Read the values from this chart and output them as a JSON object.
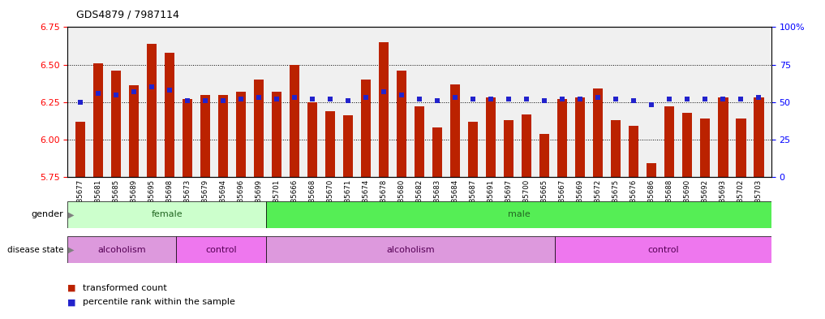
{
  "title": "GDS4879 / 7987114",
  "samples": [
    "GSM1085677",
    "GSM1085681",
    "GSM1085685",
    "GSM1085689",
    "GSM1085695",
    "GSM1085698",
    "GSM1085673",
    "GSM1085679",
    "GSM1085694",
    "GSM1085696",
    "GSM1085699",
    "GSM1085701",
    "GSM1085666",
    "GSM1085668",
    "GSM1085670",
    "GSM1085671",
    "GSM1085674",
    "GSM1085678",
    "GSM1085680",
    "GSM1085682",
    "GSM1085683",
    "GSM1085684",
    "GSM1085687",
    "GSM1085691",
    "GSM1085697",
    "GSM1085700",
    "GSM1085665",
    "GSM1085667",
    "GSM1085669",
    "GSM1085672",
    "GSM1085675",
    "GSM1085676",
    "GSM1085686",
    "GSM1085688",
    "GSM1085690",
    "GSM1085692",
    "GSM1085693",
    "GSM1085702",
    "GSM1085703"
  ],
  "bar_values": [
    6.12,
    6.51,
    6.46,
    6.36,
    6.64,
    6.58,
    6.27,
    6.3,
    6.3,
    6.32,
    6.4,
    6.32,
    6.5,
    6.25,
    6.19,
    6.16,
    6.4,
    6.65,
    6.46,
    6.22,
    6.08,
    6.37,
    6.12,
    6.28,
    6.13,
    6.17,
    6.04,
    6.27,
    6.28,
    6.34,
    6.13,
    6.09,
    5.84,
    6.22,
    6.18,
    6.14,
    6.28,
    6.14,
    6.28
  ],
  "percentile_values": [
    50,
    56,
    55,
    57,
    60,
    58,
    51,
    51,
    51,
    52,
    53,
    52,
    53,
    52,
    52,
    51,
    53,
    57,
    55,
    52,
    51,
    53,
    52,
    52,
    52,
    52,
    51,
    52,
    52,
    53,
    52,
    51,
    48,
    52,
    52,
    52,
    52,
    52,
    53
  ],
  "ylim_left": [
    5.75,
    6.75
  ],
  "ylim_right": [
    0,
    100
  ],
  "yticks_left": [
    5.75,
    6.0,
    6.25,
    6.5,
    6.75
  ],
  "yticks_right": [
    0,
    25,
    50,
    75,
    100
  ],
  "ytick_labels_right": [
    "0",
    "25",
    "50",
    "75",
    "100%"
  ],
  "bar_color": "#bb2200",
  "dot_color": "#2222cc",
  "bar_bottom": 5.75,
  "gender_groups": [
    {
      "label": "female",
      "start": 0,
      "end": 11,
      "color": "#ccffcc"
    },
    {
      "label": "male",
      "start": 11,
      "end": 39,
      "color": "#55ee55"
    }
  ],
  "disease_groups": [
    {
      "label": "alcoholism",
      "start": 0,
      "end": 6,
      "color": "#dd99dd"
    },
    {
      "label": "control",
      "start": 6,
      "end": 11,
      "color": "#ee77ee"
    },
    {
      "label": "alcoholism",
      "start": 11,
      "end": 27,
      "color": "#dd99dd"
    },
    {
      "label": "control",
      "start": 27,
      "end": 39,
      "color": "#ee77ee"
    }
  ],
  "background_color": "#ffffff"
}
